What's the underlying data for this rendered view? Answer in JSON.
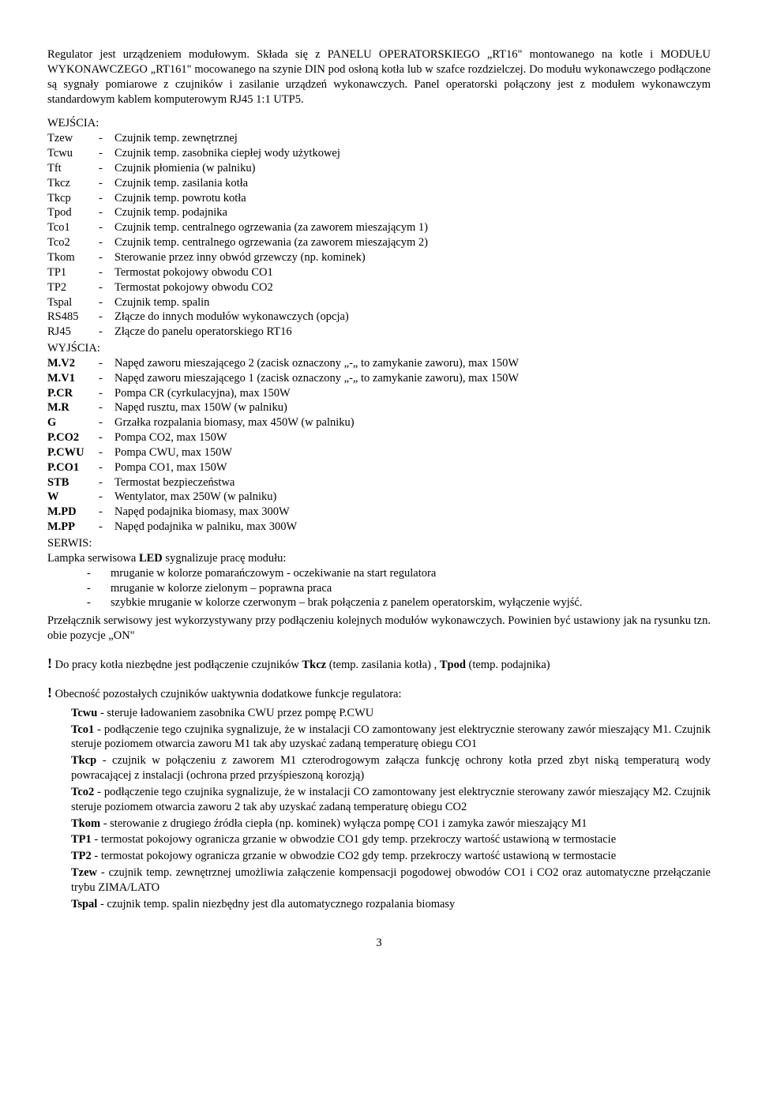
{
  "intro": "Regulator jest urządzeniem modułowym. Składa się z PANELU OPERATORSKIEGO „RT16\" montowanego na kotle i MODUŁU WYKONAWCZEGO „RT161\" mocowanego na szynie DIN pod osłoną kotła lub w szafce rozdzielczej. Do modułu wykonawczego podłączone są sygnały pomiarowe z czujników i zasilanie urządzeń wykonawczych. Panel operatorski połączony jest z modułem wykonawczym standardowym kablem komputerowym RJ45 1:1 UTP5.",
  "wejscia_label": "WEJŚCIA:",
  "wejscia": [
    {
      "label": "Tzew",
      "desc": "Czujnik temp. zewnętrznej"
    },
    {
      "label": "Tcwu",
      "desc": "Czujnik temp. zasobnika ciepłej wody użytkowej"
    },
    {
      "label": "Tft",
      "desc": "Czujnik płomienia (w palniku)"
    },
    {
      "label": "Tkcz",
      "desc": "Czujnik temp. zasilania kotła"
    },
    {
      "label": "Tkcp",
      "desc": "Czujnik temp. powrotu kotła"
    },
    {
      "label": "Tpod",
      "desc": "Czujnik temp. podajnika"
    },
    {
      "label": "Tco1",
      "desc": "Czujnik temp. centralnego ogrzewania (za zaworem mieszającym 1)"
    },
    {
      "label": "Tco2",
      "desc": "Czujnik temp. centralnego ogrzewania (za zaworem mieszającym 2)"
    },
    {
      "label": "Tkom",
      "desc": "Sterowanie przez inny obwód grzewczy (np. kominek)"
    },
    {
      "label": "TP1",
      "desc": "Termostat pokojowy obwodu CO1"
    },
    {
      "label": "TP2",
      "desc": "Termostat pokojowy obwodu CO2"
    },
    {
      "label": "Tspal",
      "desc": "Czujnik temp. spalin"
    },
    {
      "label": "RS485",
      "desc": "Złącze do innych modułów wykonawczych (opcja)"
    },
    {
      "label": "RJ45",
      "desc": "Złącze do panelu operatorskiego RT16"
    }
  ],
  "wyjscia_label": "WYJŚCIA:",
  "wyjscia": [
    {
      "label": "M.V2",
      "desc": "Napęd zaworu mieszającego 2 (zacisk oznaczony „-„ to zamykanie zaworu), max 150W"
    },
    {
      "label": "M.V1",
      "desc": "Napęd zaworu mieszającego 1 (zacisk oznaczony „-„ to zamykanie zaworu), max 150W"
    },
    {
      "label": "P.CR",
      "desc": "Pompa CR (cyrkulacyjna), max 150W"
    },
    {
      "label": "M.R",
      "desc": "Napęd rusztu, max 150W (w palniku)"
    },
    {
      "label": "G",
      "desc": "Grzałka rozpalania biomasy, max 450W (w palniku)"
    },
    {
      "label": "P.CO2",
      "desc": "Pompa CO2, max 150W"
    },
    {
      "label": "P.CWU",
      "desc": "Pompa CWU, max 150W"
    },
    {
      "label": "P.CO1",
      "desc": "Pompa CO1, max 150W"
    },
    {
      "label": "STB",
      "desc": "Termostat bezpieczeństwa"
    },
    {
      "label": "W",
      "desc": "Wentylator, max 250W (w palniku)"
    },
    {
      "label": "M.PD",
      "desc": "Napęd podajnika biomasy, max 300W"
    },
    {
      "label": "M.PP",
      "desc": "Napęd podajnika w palniku, max 300W"
    }
  ],
  "serwis_label": "SERWIS:",
  "serwis_intro_pre": "Lampka serwisowa ",
  "serwis_intro_bold": "LED",
  "serwis_intro_post": " sygnalizuje pracę modułu:",
  "serwis_items": [
    "mruganie w kolorze pomarańczowym  - oczekiwanie na start regulatora",
    "mruganie w kolorze zielonym – poprawna praca",
    "szybkie mruganie w kolorze czerwonym – brak połączenia z  panelem operatorskim, wyłączenie wyjść."
  ],
  "serwis_para": "Przełącznik serwisowy jest wykorzystywany przy podłączeniu kolejnych modułów wykonawczych. Powinien być ustawiony jak na rysunku tzn. obie pozycje „ON\"",
  "note1_pre": " Do pracy kotła niezbędne jest podłączenie czujników ",
  "note1_tkcz": "Tkcz",
  "note1_mid1": " (temp. zasilania kotła) , ",
  "note1_tpod": "Tpod",
  "note1_post": " (temp. podajnika)",
  "note2": " Obecność pozostałych czujników uaktywnia dodatkowe funkcje regulatora:",
  "sensors": [
    {
      "label": "Tcwu",
      "sep": "   - ",
      "desc": "steruje ładowaniem zasobnika CWU przez pompę P.CWU"
    },
    {
      "label": "Tco1",
      "sep": "    - ",
      "desc": "podłączenie tego czujnika sygnalizuje, że w instalacji CO zamontowany jest  elektrycznie sterowany zawór mieszający M1. Czujnik steruje poziomem otwarcia zaworu M1 tak aby uzyskać zadaną temperaturę obiegu CO1"
    },
    {
      "label": "Tkcp",
      "sep": "    - ",
      "desc": "czujnik w połączeniu z zaworem M1 czterodrogowym załącza funkcję ochrony kotła przed zbyt niską temperaturą wody powracającej z instalacji (ochrona przed przyśpieszoną korozją)"
    },
    {
      "label": "Tco2",
      "sep": "    - ",
      "desc": "podłączenie tego czujnika sygnalizuje, że w instalacji CO zamontowany jest  elektrycznie sterowany zawór mieszający M2. Czujnik steruje poziomem otwarcia zaworu 2 tak aby uzyskać zadaną temperaturę obiegu CO2"
    },
    {
      "label": "Tkom",
      "sep": "   - ",
      "desc": "sterowanie z drugiego  źródła ciepła (np. kominek) wyłącza pompę CO1 i zamyka zawór mieszający M1"
    },
    {
      "label": "TP1",
      "sep": "     - ",
      "desc": "termostat pokojowy ogranicza grzanie w obwodzie CO1 gdy temp. przekroczy wartość ustawioną w termostacie"
    },
    {
      "label": "TP2",
      "sep": "     - ",
      "desc": "termostat pokojowy ogranicza grzanie w obwodzie CO2 gdy temp. przekroczy wartość ustawioną w termostacie"
    },
    {
      "label": "Tzew",
      "sep": "   - ",
      "desc": "czujnik temp. zewnętrznej umożliwia załączenie kompensacji pogodowej obwodów CO1 i CO2 oraz automatyczne przełączanie trybu ZIMA/LATO"
    },
    {
      "label": "Tspal",
      "sep": "   - ",
      "desc": "czujnik temp. spalin  niezbędny jest dla automatycznego rozpalania biomasy"
    }
  ],
  "page_num": "3"
}
